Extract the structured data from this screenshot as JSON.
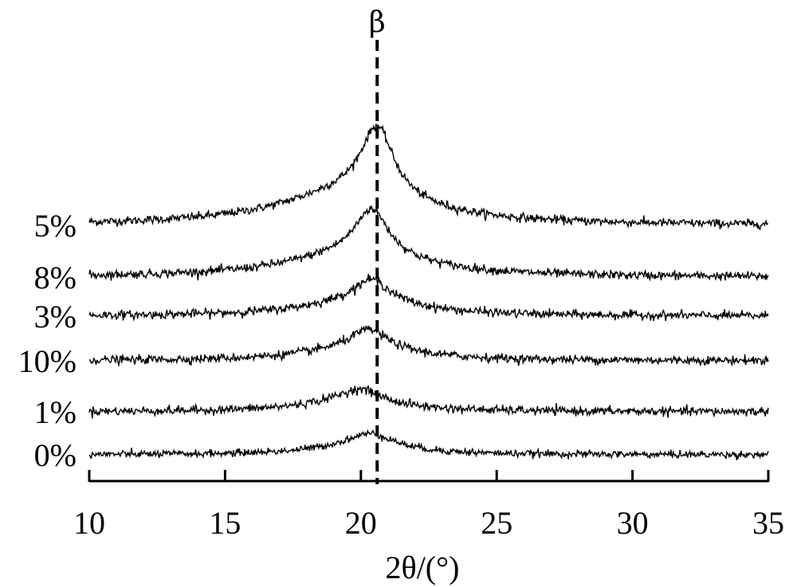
{
  "chart_data": {
    "type": "line",
    "x_range": [
      10,
      35
    ],
    "xticks": [
      10,
      15,
      20,
      25,
      30,
      35
    ],
    "xlabel": "2θ/(°)",
    "ylabel": "",
    "y_axis_shown": false,
    "grid": false,
    "peak_marker": {
      "label": "β",
      "x": 20.6,
      "style": "dashed vertical line"
    },
    "series": [
      {
        "name": "5%",
        "baseline": 5.0,
        "noise": 0.3,
        "peaks": [
          {
            "center": 20.6,
            "width": 0.75,
            "height": 9.8
          },
          {
            "center": 19.6,
            "width": 3.2,
            "height": 4.5
          }
        ]
      },
      {
        "name": "8%",
        "baseline": 5.2,
        "noise": 0.3,
        "peaks": [
          {
            "center": 20.4,
            "width": 0.75,
            "height": 6.5
          },
          {
            "center": 19.8,
            "width": 3.0,
            "height": 3.2
          }
        ]
      },
      {
        "name": "3%",
        "baseline": 5.0,
        "noise": 0.3,
        "peaks": [
          {
            "center": 20.4,
            "width": 0.8,
            "height": 3.2
          },
          {
            "center": 20.0,
            "width": 2.6,
            "height": 2.0
          }
        ]
      },
      {
        "name": "10%",
        "baseline": 5.2,
        "noise": 0.3,
        "peaks": [
          {
            "center": 20.3,
            "width": 0.8,
            "height": 2.6
          },
          {
            "center": 20.0,
            "width": 2.4,
            "height": 1.8
          }
        ]
      },
      {
        "name": "1%",
        "baseline": 5.0,
        "noise": 0.3,
        "peaks": [
          {
            "center": 20.0,
            "width": 0.9,
            "height": 1.8
          },
          {
            "center": 19.6,
            "width": 2.2,
            "height": 1.4
          }
        ]
      },
      {
        "name": "0%",
        "baseline": 5.0,
        "noise": 0.25,
        "peaks": [
          {
            "center": 20.4,
            "width": 1.0,
            "height": 1.8
          },
          {
            "center": 20.0,
            "width": 2.0,
            "height": 1.2
          }
        ]
      }
    ]
  }
}
